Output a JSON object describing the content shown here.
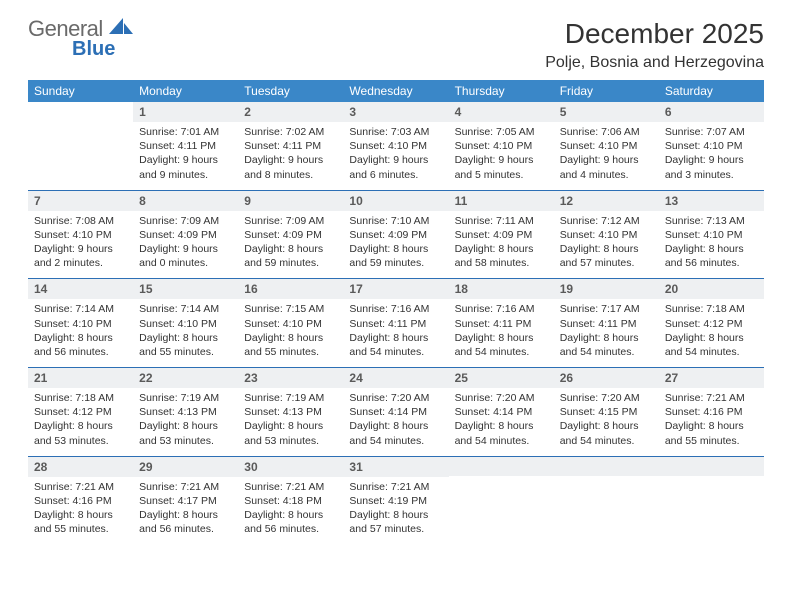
{
  "brand": {
    "part1": "General",
    "part2": "Blue"
  },
  "header": {
    "title": "December 2025",
    "location": "Polje, Bosnia and Herzegovina"
  },
  "colors": {
    "header_bg": "#3a87c8",
    "header_text": "#ffffff",
    "daynum_bg": "#eef0f2",
    "daynum_text": "#5a5a5a",
    "rule": "#2c6fb5",
    "brand_gray": "#6a6a6a",
    "brand_blue": "#2c6fb5",
    "body_text": "#333333"
  },
  "weekdays": [
    "Sunday",
    "Monday",
    "Tuesday",
    "Wednesday",
    "Thursday",
    "Friday",
    "Saturday"
  ],
  "weeks": [
    [
      null,
      {
        "n": "1",
        "sr": "Sunrise: 7:01 AM",
        "ss": "Sunset: 4:11 PM",
        "dl": "Daylight: 9 hours and 9 minutes."
      },
      {
        "n": "2",
        "sr": "Sunrise: 7:02 AM",
        "ss": "Sunset: 4:11 PM",
        "dl": "Daylight: 9 hours and 8 minutes."
      },
      {
        "n": "3",
        "sr": "Sunrise: 7:03 AM",
        "ss": "Sunset: 4:10 PM",
        "dl": "Daylight: 9 hours and 6 minutes."
      },
      {
        "n": "4",
        "sr": "Sunrise: 7:05 AM",
        "ss": "Sunset: 4:10 PM",
        "dl": "Daylight: 9 hours and 5 minutes."
      },
      {
        "n": "5",
        "sr": "Sunrise: 7:06 AM",
        "ss": "Sunset: 4:10 PM",
        "dl": "Daylight: 9 hours and 4 minutes."
      },
      {
        "n": "6",
        "sr": "Sunrise: 7:07 AM",
        "ss": "Sunset: 4:10 PM",
        "dl": "Daylight: 9 hours and 3 minutes."
      }
    ],
    [
      {
        "n": "7",
        "sr": "Sunrise: 7:08 AM",
        "ss": "Sunset: 4:10 PM",
        "dl": "Daylight: 9 hours and 2 minutes."
      },
      {
        "n": "8",
        "sr": "Sunrise: 7:09 AM",
        "ss": "Sunset: 4:09 PM",
        "dl": "Daylight: 9 hours and 0 minutes."
      },
      {
        "n": "9",
        "sr": "Sunrise: 7:09 AM",
        "ss": "Sunset: 4:09 PM",
        "dl": "Daylight: 8 hours and 59 minutes."
      },
      {
        "n": "10",
        "sr": "Sunrise: 7:10 AM",
        "ss": "Sunset: 4:09 PM",
        "dl": "Daylight: 8 hours and 59 minutes."
      },
      {
        "n": "11",
        "sr": "Sunrise: 7:11 AM",
        "ss": "Sunset: 4:09 PM",
        "dl": "Daylight: 8 hours and 58 minutes."
      },
      {
        "n": "12",
        "sr": "Sunrise: 7:12 AM",
        "ss": "Sunset: 4:10 PM",
        "dl": "Daylight: 8 hours and 57 minutes."
      },
      {
        "n": "13",
        "sr": "Sunrise: 7:13 AM",
        "ss": "Sunset: 4:10 PM",
        "dl": "Daylight: 8 hours and 56 minutes."
      }
    ],
    [
      {
        "n": "14",
        "sr": "Sunrise: 7:14 AM",
        "ss": "Sunset: 4:10 PM",
        "dl": "Daylight: 8 hours and 56 minutes."
      },
      {
        "n": "15",
        "sr": "Sunrise: 7:14 AM",
        "ss": "Sunset: 4:10 PM",
        "dl": "Daylight: 8 hours and 55 minutes."
      },
      {
        "n": "16",
        "sr": "Sunrise: 7:15 AM",
        "ss": "Sunset: 4:10 PM",
        "dl": "Daylight: 8 hours and 55 minutes."
      },
      {
        "n": "17",
        "sr": "Sunrise: 7:16 AM",
        "ss": "Sunset: 4:11 PM",
        "dl": "Daylight: 8 hours and 54 minutes."
      },
      {
        "n": "18",
        "sr": "Sunrise: 7:16 AM",
        "ss": "Sunset: 4:11 PM",
        "dl": "Daylight: 8 hours and 54 minutes."
      },
      {
        "n": "19",
        "sr": "Sunrise: 7:17 AM",
        "ss": "Sunset: 4:11 PM",
        "dl": "Daylight: 8 hours and 54 minutes."
      },
      {
        "n": "20",
        "sr": "Sunrise: 7:18 AM",
        "ss": "Sunset: 4:12 PM",
        "dl": "Daylight: 8 hours and 54 minutes."
      }
    ],
    [
      {
        "n": "21",
        "sr": "Sunrise: 7:18 AM",
        "ss": "Sunset: 4:12 PM",
        "dl": "Daylight: 8 hours and 53 minutes."
      },
      {
        "n": "22",
        "sr": "Sunrise: 7:19 AM",
        "ss": "Sunset: 4:13 PM",
        "dl": "Daylight: 8 hours and 53 minutes."
      },
      {
        "n": "23",
        "sr": "Sunrise: 7:19 AM",
        "ss": "Sunset: 4:13 PM",
        "dl": "Daylight: 8 hours and 53 minutes."
      },
      {
        "n": "24",
        "sr": "Sunrise: 7:20 AM",
        "ss": "Sunset: 4:14 PM",
        "dl": "Daylight: 8 hours and 54 minutes."
      },
      {
        "n": "25",
        "sr": "Sunrise: 7:20 AM",
        "ss": "Sunset: 4:14 PM",
        "dl": "Daylight: 8 hours and 54 minutes."
      },
      {
        "n": "26",
        "sr": "Sunrise: 7:20 AM",
        "ss": "Sunset: 4:15 PM",
        "dl": "Daylight: 8 hours and 54 minutes."
      },
      {
        "n": "27",
        "sr": "Sunrise: 7:21 AM",
        "ss": "Sunset: 4:16 PM",
        "dl": "Daylight: 8 hours and 55 minutes."
      }
    ],
    [
      {
        "n": "28",
        "sr": "Sunrise: 7:21 AM",
        "ss": "Sunset: 4:16 PM",
        "dl": "Daylight: 8 hours and 55 minutes."
      },
      {
        "n": "29",
        "sr": "Sunrise: 7:21 AM",
        "ss": "Sunset: 4:17 PM",
        "dl": "Daylight: 8 hours and 56 minutes."
      },
      {
        "n": "30",
        "sr": "Sunrise: 7:21 AM",
        "ss": "Sunset: 4:18 PM",
        "dl": "Daylight: 8 hours and 56 minutes."
      },
      {
        "n": "31",
        "sr": "Sunrise: 7:21 AM",
        "ss": "Sunset: 4:19 PM",
        "dl": "Daylight: 8 hours and 57 minutes."
      },
      null,
      null,
      null
    ]
  ]
}
